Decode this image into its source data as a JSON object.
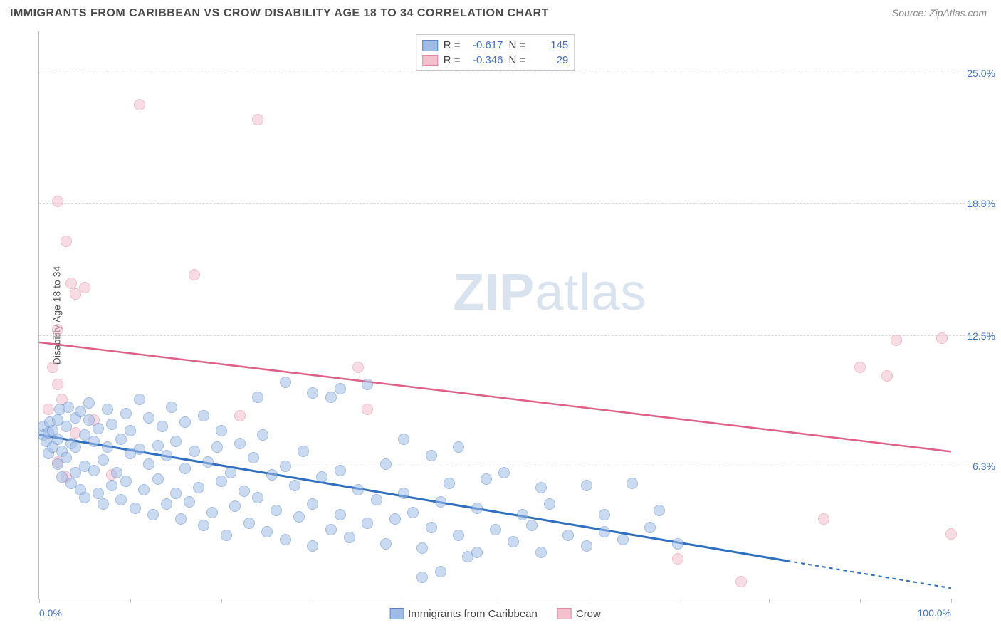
{
  "title": "IMMIGRANTS FROM CARIBBEAN VS CROW DISABILITY AGE 18 TO 34 CORRELATION CHART",
  "source_prefix": "Source: ",
  "source": "ZipAtlas.com",
  "yaxis_label": "Disability Age 18 to 34",
  "watermark_a": "ZIP",
  "watermark_b": "atlas",
  "chart": {
    "type": "scatter",
    "background_color": "#ffffff",
    "grid_color": "#d9d9d9",
    "axis_color": "#bdbdbd",
    "tick_label_color": "#4171c5",
    "xlim": [
      0,
      100
    ],
    "ylim": [
      0,
      27
    ],
    "x_ticks": [
      0,
      10,
      20,
      30,
      40,
      50,
      60,
      70,
      80,
      90,
      100
    ],
    "x_tick_labels": {
      "0": "0.0%",
      "100": "100.0%"
    },
    "y_gridlines": [
      6.3,
      12.5,
      18.8,
      25.0
    ],
    "y_tick_labels": [
      "6.3%",
      "12.5%",
      "18.8%",
      "25.0%"
    ],
    "point_radius": 8,
    "point_opacity": 0.55,
    "series": [
      {
        "name": "Immigrants from Caribbean",
        "color_fill": "#9fbce6",
        "color_stroke": "#5a86c9",
        "line_color": "#2f6fc1",
        "line_width": 3,
        "R_label": "R =",
        "R": "-0.617",
        "N_label": "N =",
        "N": "145",
        "regression": {
          "x1": 0,
          "y1": 7.8,
          "x2": 82,
          "y2": 1.8,
          "dash_to_x": 100,
          "dash_to_y": 0.5
        },
        "points": [
          [
            0.5,
            7.8
          ],
          [
            0.5,
            8.2
          ],
          [
            0.8,
            7.5
          ],
          [
            1,
            7.9
          ],
          [
            1,
            6.9
          ],
          [
            1.2,
            8.4
          ],
          [
            1.5,
            7.2
          ],
          [
            1.5,
            8.0
          ],
          [
            2,
            7.6
          ],
          [
            2,
            6.4
          ],
          [
            2,
            8.5
          ],
          [
            2.3,
            9.0
          ],
          [
            2.5,
            7.0
          ],
          [
            2.5,
            5.8
          ],
          [
            3,
            8.2
          ],
          [
            3,
            6.7
          ],
          [
            3.2,
            9.1
          ],
          [
            3.5,
            7.4
          ],
          [
            3.5,
            5.5
          ],
          [
            4,
            8.6
          ],
          [
            4,
            6.0
          ],
          [
            4,
            7.2
          ],
          [
            4.5,
            8.9
          ],
          [
            4.5,
            5.2
          ],
          [
            5,
            7.8
          ],
          [
            5,
            6.3
          ],
          [
            5,
            4.8
          ],
          [
            5.5,
            8.5
          ],
          [
            5.5,
            9.3
          ],
          [
            6,
            6.1
          ],
          [
            6,
            7.5
          ],
          [
            6.5,
            5.0
          ],
          [
            6.5,
            8.1
          ],
          [
            7,
            6.6
          ],
          [
            7,
            4.5
          ],
          [
            7.5,
            9.0
          ],
          [
            7.5,
            7.2
          ],
          [
            8,
            5.4
          ],
          [
            8,
            8.3
          ],
          [
            8.5,
            6.0
          ],
          [
            9,
            7.6
          ],
          [
            9,
            4.7
          ],
          [
            9.5,
            8.8
          ],
          [
            9.5,
            5.6
          ],
          [
            10,
            6.9
          ],
          [
            10,
            8.0
          ],
          [
            10.5,
            4.3
          ],
          [
            11,
            7.1
          ],
          [
            11,
            9.5
          ],
          [
            11.5,
            5.2
          ],
          [
            12,
            6.4
          ],
          [
            12,
            8.6
          ],
          [
            12.5,
            4.0
          ],
          [
            13,
            7.3
          ],
          [
            13,
            5.7
          ],
          [
            13.5,
            8.2
          ],
          [
            14,
            4.5
          ],
          [
            14,
            6.8
          ],
          [
            14.5,
            9.1
          ],
          [
            15,
            5.0
          ],
          [
            15,
            7.5
          ],
          [
            15.5,
            3.8
          ],
          [
            16,
            6.2
          ],
          [
            16,
            8.4
          ],
          [
            16.5,
            4.6
          ],
          [
            17,
            7.0
          ],
          [
            17.5,
            5.3
          ],
          [
            18,
            8.7
          ],
          [
            18,
            3.5
          ],
          [
            18.5,
            6.5
          ],
          [
            19,
            4.1
          ],
          [
            19.5,
            7.2
          ],
          [
            20,
            5.6
          ],
          [
            20,
            8.0
          ],
          [
            20.5,
            3.0
          ],
          [
            21,
            6.0
          ],
          [
            21.5,
            4.4
          ],
          [
            22,
            7.4
          ],
          [
            22.5,
            5.1
          ],
          [
            23,
            3.6
          ],
          [
            23.5,
            6.7
          ],
          [
            24,
            4.8
          ],
          [
            24.5,
            7.8
          ],
          [
            25,
            3.2
          ],
          [
            25.5,
            5.9
          ],
          [
            26,
            4.2
          ],
          [
            27,
            6.3
          ],
          [
            27,
            2.8
          ],
          [
            28,
            5.4
          ],
          [
            28.5,
            3.9
          ],
          [
            29,
            7.0
          ],
          [
            30,
            4.5
          ],
          [
            30,
            2.5
          ],
          [
            31,
            5.8
          ],
          [
            32,
            3.3
          ],
          [
            32,
            9.6
          ],
          [
            33,
            6.1
          ],
          [
            33,
            4.0
          ],
          [
            34,
            2.9
          ],
          [
            35,
            5.2
          ],
          [
            36,
            10.2
          ],
          [
            36,
            3.6
          ],
          [
            37,
            4.7
          ],
          [
            38,
            6.4
          ],
          [
            38,
            2.6
          ],
          [
            39,
            3.8
          ],
          [
            40,
            7.6
          ],
          [
            40,
            5.0
          ],
          [
            41,
            4.1
          ],
          [
            42,
            2.4
          ],
          [
            43,
            6.8
          ],
          [
            43,
            3.4
          ],
          [
            44,
            4.6
          ],
          [
            45,
            5.5
          ],
          [
            46,
            7.2
          ],
          [
            46,
            3.0
          ],
          [
            47,
            2.0
          ],
          [
            48,
            4.3
          ],
          [
            49,
            5.7
          ],
          [
            50,
            3.3
          ],
          [
            51,
            6.0
          ],
          [
            52,
            2.7
          ],
          [
            53,
            4.0
          ],
          [
            54,
            3.5
          ],
          [
            55,
            5.3
          ],
          [
            55,
            2.2
          ],
          [
            56,
            4.5
          ],
          [
            58,
            3.0
          ],
          [
            60,
            5.4
          ],
          [
            60,
            2.5
          ],
          [
            62,
            4.0
          ],
          [
            62,
            3.2
          ],
          [
            64,
            2.8
          ],
          [
            65,
            5.5
          ],
          [
            67,
            3.4
          ],
          [
            68,
            4.2
          ],
          [
            70,
            2.6
          ],
          [
            42,
            1.0
          ],
          [
            44,
            1.3
          ],
          [
            48,
            2.2
          ],
          [
            33,
            10.0
          ],
          [
            30,
            9.8
          ],
          [
            27,
            10.3
          ],
          [
            24,
            9.6
          ]
        ]
      },
      {
        "name": "Crow",
        "color_fill": "#f3c1ce",
        "color_stroke": "#e089a2",
        "line_color": "#e05f87",
        "line_width": 2.5,
        "R_label": "R =",
        "R": "-0.346",
        "N_label": "N =",
        "N": "29",
        "regression": {
          "x1": 0,
          "y1": 12.2,
          "x2": 100,
          "y2": 7.0
        },
        "points": [
          [
            2,
            18.9
          ],
          [
            3,
            17.0
          ],
          [
            3.5,
            15.0
          ],
          [
            4,
            14.5
          ],
          [
            5,
            14.8
          ],
          [
            2,
            12.8
          ],
          [
            1.5,
            11.0
          ],
          [
            2,
            10.2
          ],
          [
            2.5,
            9.5
          ],
          [
            1,
            9.0
          ],
          [
            2,
            6.5
          ],
          [
            3,
            5.8
          ],
          [
            8,
            5.9
          ],
          [
            11,
            23.5
          ],
          [
            24,
            22.8
          ],
          [
            17,
            15.4
          ],
          [
            22,
            8.7
          ],
          [
            35,
            11.0
          ],
          [
            36,
            9.0
          ],
          [
            70,
            1.9
          ],
          [
            77,
            0.8
          ],
          [
            86,
            3.8
          ],
          [
            90,
            11.0
          ],
          [
            93,
            10.6
          ],
          [
            94,
            12.3
          ],
          [
            99,
            12.4
          ],
          [
            100,
            3.1
          ],
          [
            6,
            8.5
          ],
          [
            4,
            7.9
          ]
        ]
      }
    ]
  }
}
